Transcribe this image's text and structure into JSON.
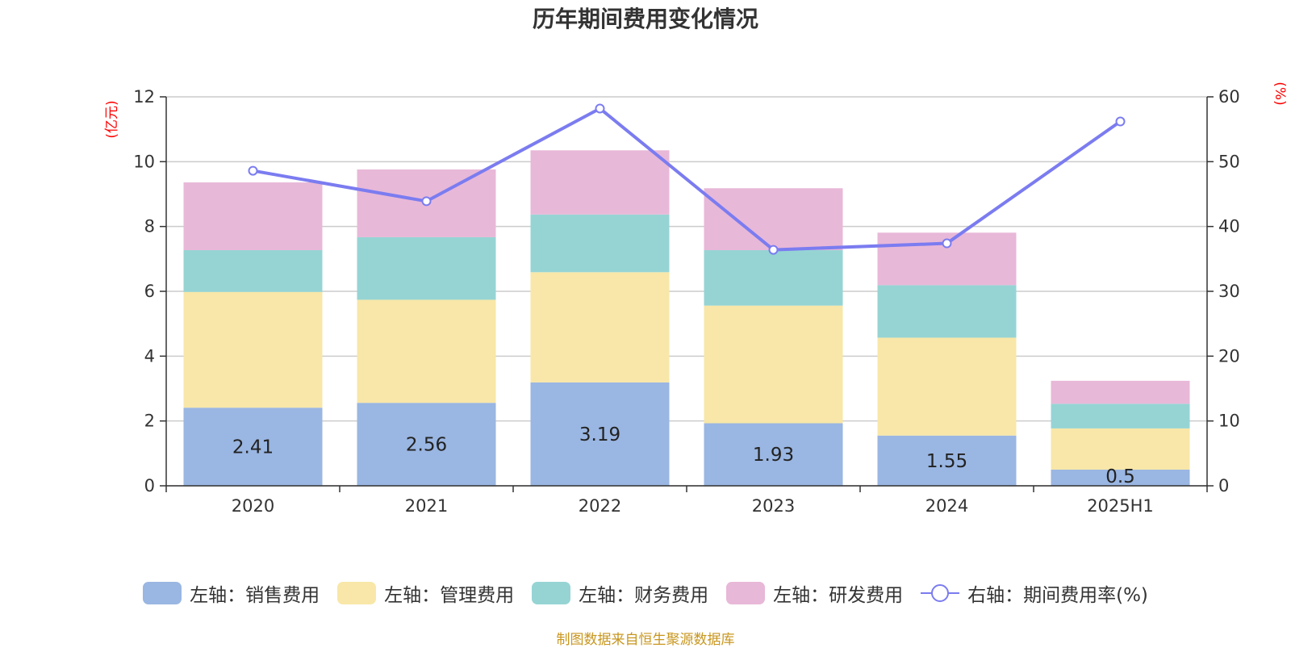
{
  "title": "历年期间费用变化情况",
  "source_note": "制图数据来自恒生聚源数据库",
  "colors": {
    "sales": "#9ab6e2",
    "admin": "#f8e7a8",
    "finance": "#96d4d4",
    "rd": "#e8b8d8",
    "rate": "#7b7cf0"
  },
  "chart_data": {
    "type": "bar",
    "stacked": true,
    "title": "历年期间费用变化情况",
    "categories": [
      "2020",
      "2021",
      "2022",
      "2023",
      "2024",
      "2025H1"
    ],
    "left_axis": {
      "unit": "(亿元)",
      "ylim": [
        0,
        12
      ],
      "ticks": [
        0,
        2,
        4,
        6,
        8,
        10,
        12
      ]
    },
    "right_axis": {
      "unit": "(%)",
      "ylim": [
        0,
        60
      ],
      "ticks": [
        0,
        10,
        20,
        30,
        40,
        50,
        60
      ]
    },
    "grid": true,
    "legend_position": "bottom-center",
    "series": [
      {
        "name": "左轴：销售费用",
        "key": "sales",
        "axis": "left",
        "type": "bar",
        "values": [
          2.41,
          2.56,
          3.19,
          1.93,
          1.55,
          0.5
        ],
        "show_labels": true
      },
      {
        "name": "左轴：管理费用",
        "key": "admin",
        "axis": "left",
        "type": "bar",
        "values": [
          3.57,
          3.18,
          3.4,
          3.63,
          3.02,
          1.27
        ]
      },
      {
        "name": "左轴：财务费用",
        "key": "finance",
        "axis": "left",
        "type": "bar",
        "values": [
          1.29,
          1.93,
          1.78,
          1.71,
          1.62,
          0.76
        ]
      },
      {
        "name": "左轴：研发费用",
        "key": "rd",
        "axis": "left",
        "type": "bar",
        "values": [
          2.09,
          2.09,
          1.98,
          1.91,
          1.62,
          0.71
        ]
      },
      {
        "name": "右轴：期间费用率(%)",
        "key": "rate",
        "axis": "right",
        "type": "line",
        "values": [
          48.6,
          43.9,
          58.2,
          36.4,
          37.4,
          56.2
        ]
      }
    ]
  }
}
